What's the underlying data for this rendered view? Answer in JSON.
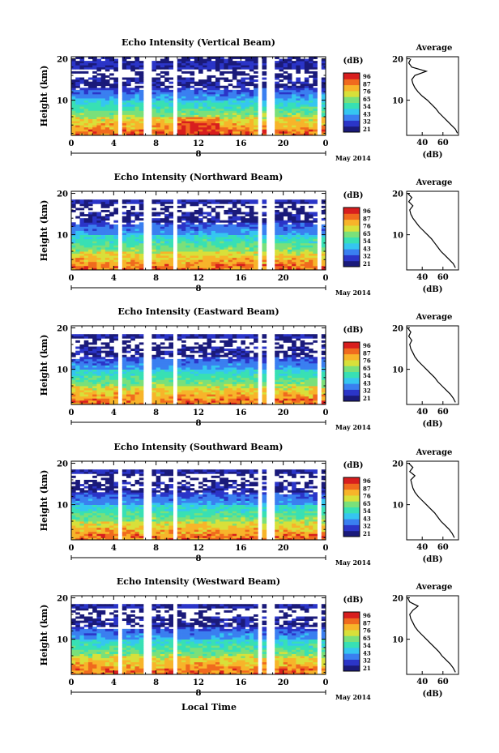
{
  "x_label": "Local Time",
  "date_label": "May 2014",
  "day_label": "8",
  "unit_label": "(dB)",
  "average_title": "Average",
  "average_xlabel": "(dB)",
  "y_label": "Height (km)",
  "colors": {
    "scale": [
      "#1a1a7a",
      "#2b35c8",
      "#3a7ff0",
      "#35c6f0",
      "#38e0b4",
      "#7ae07a",
      "#d8e03a",
      "#f7b42a",
      "#f06a1e",
      "#d81e1e"
    ],
    "gap": "#ffffff"
  },
  "chart_data": [
    {
      "type": "heatmap",
      "title": "Echo Intensity (Vertical Beam)",
      "x_ticks": [
        "0",
        "4",
        "8",
        "12",
        "16",
        "20",
        "0"
      ],
      "xlim": [
        0,
        24
      ],
      "y_ticks": [
        "20",
        "10"
      ],
      "ylim": [
        1.5,
        20.5
      ],
      "colorbar_ticks": [
        "96",
        "87",
        "76",
        "65",
        "54",
        "43",
        "32",
        "21"
      ],
      "colorbar_range": [
        21,
        96
      ],
      "data_gaps_hours": [
        [
          4.3,
          4.8
        ],
        [
          6.8,
          7.4
        ],
        [
          9.6,
          10.0
        ],
        [
          17.6,
          18.1
        ],
        [
          18.6,
          19.1
        ],
        [
          23.1,
          23.5
        ]
      ],
      "average": {
        "x_ticks": [
          "40",
          "60"
        ],
        "y_ticks": [
          "20",
          "10"
        ],
        "profile": [
          [
            74,
            2
          ],
          [
            72,
            3
          ],
          [
            68,
            4
          ],
          [
            64,
            5
          ],
          [
            60,
            6
          ],
          [
            56,
            7
          ],
          [
            53,
            8
          ],
          [
            49,
            9
          ],
          [
            45,
            10
          ],
          [
            40,
            11
          ],
          [
            36,
            12
          ],
          [
            33,
            13
          ],
          [
            31,
            14
          ],
          [
            30,
            15
          ],
          [
            33,
            16
          ],
          [
            44,
            17
          ],
          [
            30,
            18
          ],
          [
            27,
            19
          ],
          [
            29,
            20
          ]
        ]
      }
    },
    {
      "type": "heatmap",
      "title": "Echo Intensity (Northward Beam)",
      "x_ticks": [
        "0",
        "4",
        "8",
        "12",
        "16",
        "20",
        "0"
      ],
      "xlim": [
        0,
        24
      ],
      "y_ticks": [
        "20",
        "10"
      ],
      "ylim": [
        1.5,
        20.5
      ],
      "colorbar_ticks": [
        "96",
        "87",
        "76",
        "65",
        "54",
        "43",
        "32",
        "21"
      ],
      "colorbar_range": [
        21,
        96
      ],
      "data_gaps_hours": [
        [
          4.3,
          4.8
        ],
        [
          6.8,
          7.4
        ],
        [
          9.6,
          10.0
        ],
        [
          17.6,
          18.1
        ],
        [
          18.6,
          19.1
        ],
        [
          23.1,
          23.5
        ]
      ],
      "average": {
        "x_ticks": [
          "40",
          "60"
        ],
        "y_ticks": [
          "20",
          "10"
        ],
        "profile": [
          [
            72,
            2
          ],
          [
            70,
            3
          ],
          [
            66,
            4
          ],
          [
            62,
            5
          ],
          [
            58,
            6
          ],
          [
            55,
            7
          ],
          [
            52,
            8
          ],
          [
            49,
            9
          ],
          [
            45,
            10
          ],
          [
            41,
            11
          ],
          [
            37,
            12
          ],
          [
            34,
            13
          ],
          [
            31,
            14
          ],
          [
            29,
            15
          ],
          [
            28,
            16
          ],
          [
            31,
            17
          ],
          [
            27,
            18
          ],
          [
            30,
            19
          ],
          [
            26,
            20
          ]
        ]
      }
    },
    {
      "type": "heatmap",
      "title": "Echo Intensity (Eastward Beam)",
      "x_ticks": [
        "0",
        "4",
        "8",
        "12",
        "16",
        "20",
        "0"
      ],
      "xlim": [
        0,
        24
      ],
      "y_ticks": [
        "20",
        "10"
      ],
      "ylim": [
        1.5,
        20.5
      ],
      "colorbar_ticks": [
        "96",
        "87",
        "76",
        "65",
        "54",
        "43",
        "32",
        "21"
      ],
      "colorbar_range": [
        21,
        96
      ],
      "data_gaps_hours": [
        [
          4.3,
          4.8
        ],
        [
          6.8,
          7.4
        ],
        [
          9.6,
          10.0
        ],
        [
          17.6,
          18.1
        ],
        [
          18.6,
          19.1
        ],
        [
          23.1,
          23.5
        ]
      ],
      "average": {
        "x_ticks": [
          "40",
          "60"
        ],
        "y_ticks": [
          "20",
          "10"
        ],
        "profile": [
          [
            72,
            2
          ],
          [
            70,
            3
          ],
          [
            67,
            4
          ],
          [
            63,
            5
          ],
          [
            59,
            6
          ],
          [
            55,
            7
          ],
          [
            52,
            8
          ],
          [
            48,
            9
          ],
          [
            44,
            10
          ],
          [
            40,
            11
          ],
          [
            36,
            12
          ],
          [
            33,
            13
          ],
          [
            31,
            14
          ],
          [
            29,
            15
          ],
          [
            28,
            16
          ],
          [
            30,
            17
          ],
          [
            27,
            18
          ],
          [
            29,
            19
          ],
          [
            26,
            20
          ]
        ]
      }
    },
    {
      "type": "heatmap",
      "title": "Echo Intensity (Southward Beam)",
      "x_ticks": [
        "0",
        "4",
        "8",
        "12",
        "16",
        "20",
        "0"
      ],
      "xlim": [
        0,
        24
      ],
      "y_ticks": [
        "20",
        "10"
      ],
      "ylim": [
        1.5,
        20.5
      ],
      "colorbar_ticks": [
        "96",
        "87",
        "76",
        "65",
        "54",
        "43",
        "32",
        "21"
      ],
      "colorbar_range": [
        21,
        96
      ],
      "data_gaps_hours": [
        [
          4.3,
          4.8
        ],
        [
          6.8,
          7.4
        ],
        [
          9.6,
          10.0
        ],
        [
          17.6,
          18.1
        ],
        [
          18.6,
          19.1
        ],
        [
          23.1,
          23.5
        ]
      ],
      "average": {
        "x_ticks": [
          "40",
          "60"
        ],
        "y_ticks": [
          "20",
          "10"
        ],
        "profile": [
          [
            71,
            2
          ],
          [
            69,
            3
          ],
          [
            66,
            4
          ],
          [
            62,
            5
          ],
          [
            58,
            6
          ],
          [
            55,
            7
          ],
          [
            52,
            8
          ],
          [
            48,
            9
          ],
          [
            44,
            10
          ],
          [
            40,
            11
          ],
          [
            36,
            12
          ],
          [
            33,
            13
          ],
          [
            31,
            14
          ],
          [
            30,
            15
          ],
          [
            29,
            16
          ],
          [
            33,
            17
          ],
          [
            28,
            18
          ],
          [
            31,
            19
          ],
          [
            27,
            20
          ]
        ]
      }
    },
    {
      "type": "heatmap",
      "title": "Echo Intensity (Westward Beam)",
      "x_ticks": [
        "0",
        "4",
        "8",
        "12",
        "16",
        "20",
        "0"
      ],
      "xlim": [
        0,
        24
      ],
      "y_ticks": [
        "20",
        "10"
      ],
      "ylim": [
        1.5,
        20.5
      ],
      "colorbar_ticks": [
        "96",
        "87",
        "76",
        "65",
        "54",
        "43",
        "32",
        "21"
      ],
      "colorbar_range": [
        21,
        96
      ],
      "data_gaps_hours": [
        [
          4.3,
          4.8
        ],
        [
          6.8,
          7.4
        ],
        [
          9.6,
          10.0
        ],
        [
          17.6,
          18.1
        ],
        [
          18.6,
          19.1
        ],
        [
          23.1,
          23.5
        ]
      ],
      "average": {
        "x_ticks": [
          "40",
          "60"
        ],
        "y_ticks": [
          "20",
          "10"
        ],
        "profile": [
          [
            72,
            2
          ],
          [
            70,
            3
          ],
          [
            67,
            4
          ],
          [
            63,
            5
          ],
          [
            59,
            6
          ],
          [
            56,
            7
          ],
          [
            52,
            8
          ],
          [
            48,
            9
          ],
          [
            44,
            10
          ],
          [
            40,
            11
          ],
          [
            36,
            12
          ],
          [
            33,
            13
          ],
          [
            31,
            14
          ],
          [
            29,
            15
          ],
          [
            28,
            16
          ],
          [
            31,
            17
          ],
          [
            36,
            18
          ],
          [
            28,
            19
          ],
          [
            26,
            20
          ]
        ]
      }
    }
  ]
}
